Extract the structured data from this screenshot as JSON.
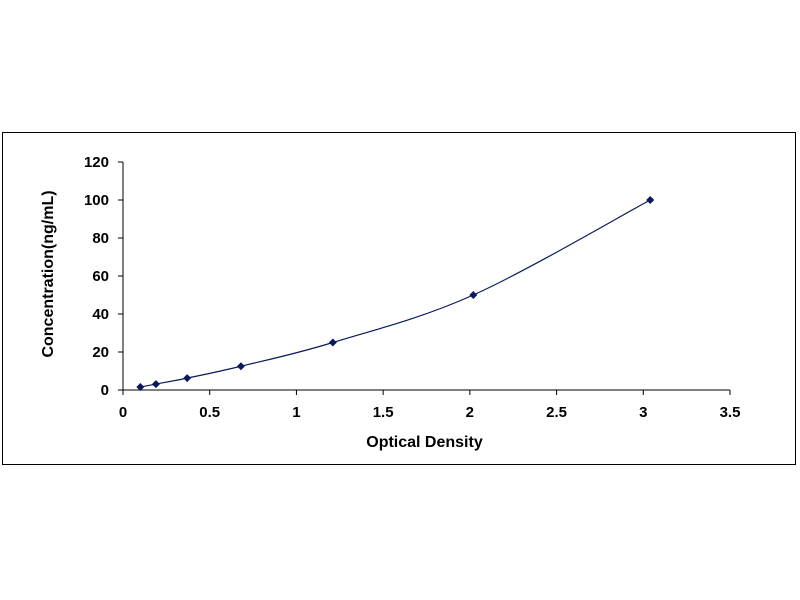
{
  "chart_data": {
    "type": "scatter",
    "title": "",
    "xlabel": "Optical Density",
    "ylabel": "Concentration(ng/mL)",
    "xlim": [
      0,
      3.5
    ],
    "ylim": [
      0,
      120
    ],
    "x_ticks": [
      "0",
      "0.5",
      "1",
      "1.5",
      "2",
      "2.5",
      "3",
      "3.5"
    ],
    "y_ticks": [
      "0",
      "20",
      "40",
      "60",
      "80",
      "100",
      "120"
    ],
    "grid": false,
    "legend": "none",
    "trendline": "smooth curve through points",
    "series": [
      {
        "color": "#0a1a5c",
        "marker": "diamond",
        "x": [
          0.1,
          0.19,
          0.37,
          0.68,
          1.21,
          2.02,
          3.04
        ],
        "y": [
          1.56,
          3.12,
          6.25,
          12.5,
          25,
          50,
          100
        ]
      }
    ]
  }
}
